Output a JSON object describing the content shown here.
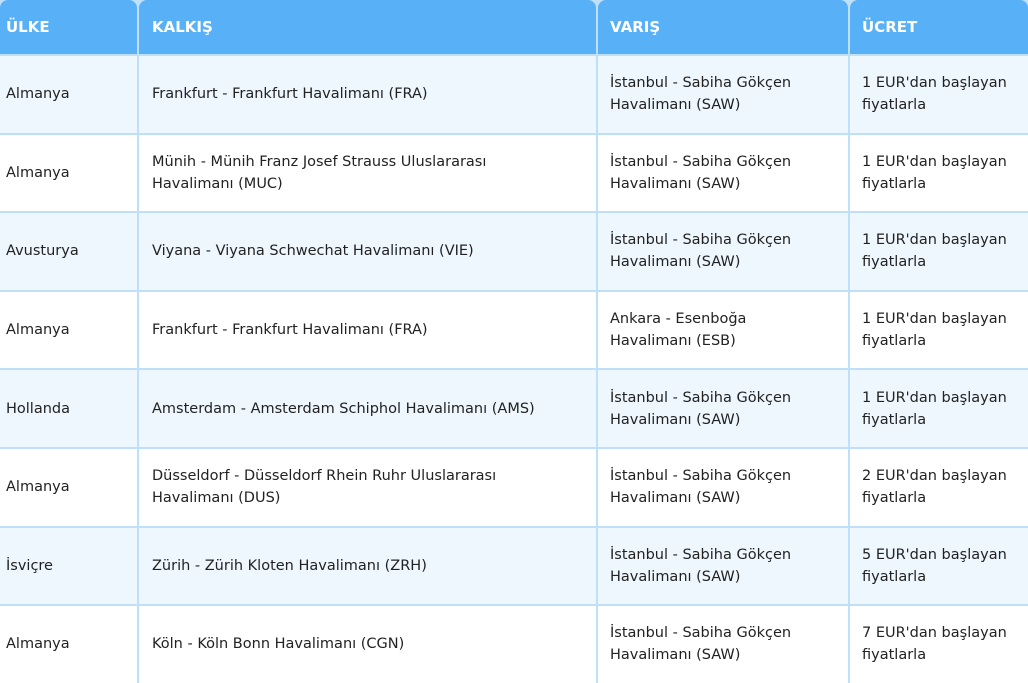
{
  "table": {
    "header": [
      "ÜLKE",
      "KALKIŞ",
      "VARIŞ",
      "ÜCRET"
    ],
    "rows": [
      [
        "Almanya",
        "Frankfurt - Frankfurt Havalimanı (FRA)",
        "İstanbul - Sabiha Gökçen Havalimanı (SAW)",
        "1 EUR'dan başlayan fiyatlarla"
      ],
      [
        "Almanya",
        "Münih - Münih Franz Josef Strauss Uluslararası Havalimanı (MUC)",
        "İstanbul - Sabiha Gökçen Havalimanı (SAW)",
        "1 EUR'dan başlayan fiyatlarla"
      ],
      [
        "Avusturya",
        "Viyana - Viyana Schwechat Havalimanı (VIE)",
        "İstanbul - Sabiha Gökçen Havalimanı (SAW)",
        "1 EUR'dan başlayan fiyatlarla"
      ],
      [
        "Almanya",
        "Frankfurt - Frankfurt Havalimanı (FRA)",
        "Ankara - Esenboğa Havalimanı (ESB)",
        "1 EUR'dan başlayan fiyatlarla"
      ],
      [
        "Hollanda",
        "Amsterdam - Amsterdam Schiphol Havalimanı (AMS)",
        "İstanbul - Sabiha Gökçen Havalimanı (SAW)",
        "1 EUR'dan başlayan fiyatlarla"
      ],
      [
        "Almanya",
        "Düsseldorf - Düsseldorf Rhein Ruhr Uluslararası Havalimanı (DUS)",
        "İstanbul - Sabiha Gökçen Havalimanı (SAW)",
        "2 EUR'dan başlayan fiyatlarla"
      ],
      [
        "İsviçre",
        "Zürih - Zürih Kloten Havalimanı (ZRH)",
        "İstanbul - Sabiha Gökçen Havalimanı (SAW)",
        "5 EUR'dan başlayan fiyatlarla"
      ],
      [
        "Almanya",
        "Köln - Köln Bonn Havalimanı (CGN)",
        "İstanbul - Sabiha Gökçen Havalimanı (SAW)",
        "7 EUR'dan başlayan fiyatlarla"
      ]
    ]
  }
}
